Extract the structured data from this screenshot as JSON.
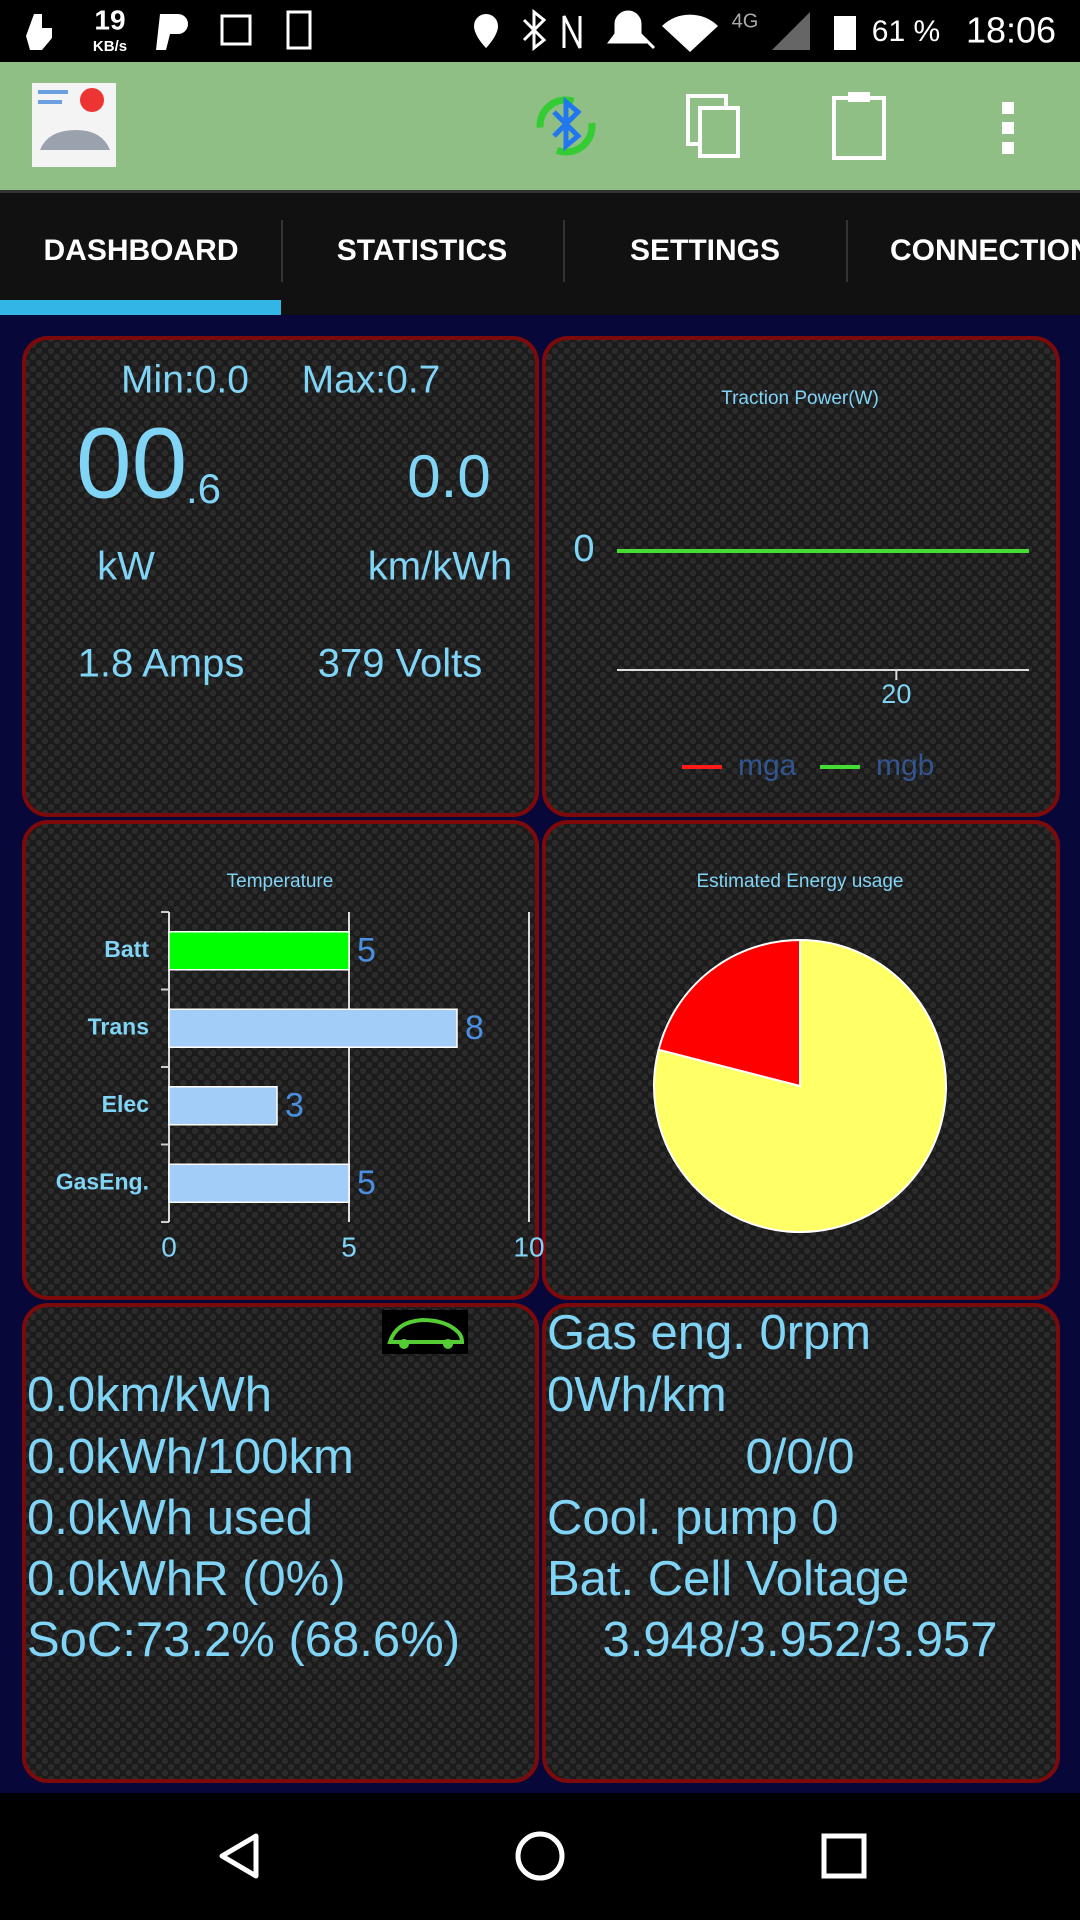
{
  "status_bar": {
    "speed": "19",
    "speed_unit": "KB/s",
    "network": "4G",
    "battery": "61 %",
    "time": "18:06"
  },
  "tabs": [
    "DASHBOARD",
    "STATISTICS",
    "SETTINGS",
    "CONNECTION"
  ],
  "power_panel": {
    "min": "Min:0.0",
    "max": "Max:0.7",
    "power_int": "00",
    "power_dec": ".6",
    "efficiency": "0.0",
    "power_unit": "kW",
    "efficiency_unit": "km/kWh",
    "current": "1.8 Amps",
    "voltage": "379 Volts"
  },
  "traction_chart": {
    "type": "line",
    "title": "Traction Power(W)",
    "xlim": [
      0,
      29.5
    ],
    "xticks": [
      20
    ],
    "ylim": [
      -1,
      0
    ],
    "yticks": [
      0
    ],
    "series": [
      {
        "name": "mga",
        "color": "#ff1a1a",
        "x": [
          0,
          29.5
        ],
        "values": [
          0,
          0
        ]
      },
      {
        "name": "mgb",
        "color": "#44dd33",
        "x": [
          0,
          29.5
        ],
        "values": [
          0,
          0
        ]
      }
    ]
  },
  "temperature_chart": {
    "type": "bar",
    "orientation": "horizontal",
    "title": "Temperature",
    "categories": [
      "Batt",
      "Trans",
      "Elec",
      "GasEng."
    ],
    "values": [
      5,
      8,
      3,
      5
    ],
    "colors": [
      "#00ff00",
      "#a3cdf9",
      "#a3cdf9",
      "#a3cdf9"
    ],
    "xlim": [
      0,
      10
    ],
    "xticks": [
      0,
      5,
      10
    ],
    "grid": true
  },
  "energy_chart": {
    "type": "pie",
    "title": "Estimated Energy usage",
    "values": [
      79,
      21
    ],
    "colors": [
      "#ffff66",
      "#ff0000"
    ]
  },
  "trip_panel": {
    "lines": [
      "0.0km/kWh",
      "0.0kWh/100km",
      "0.0kWh used",
      "0.0kWhR (0%)",
      "SoC:73.2% (68.6%)"
    ]
  },
  "engine_panel": {
    "lines": [
      "Gas eng. 0rpm",
      "0Wh/km",
      "0/0/0",
      "Cool. pump 0",
      "Bat. Cell Voltage",
      "3.948/3.952/3.957"
    ]
  }
}
